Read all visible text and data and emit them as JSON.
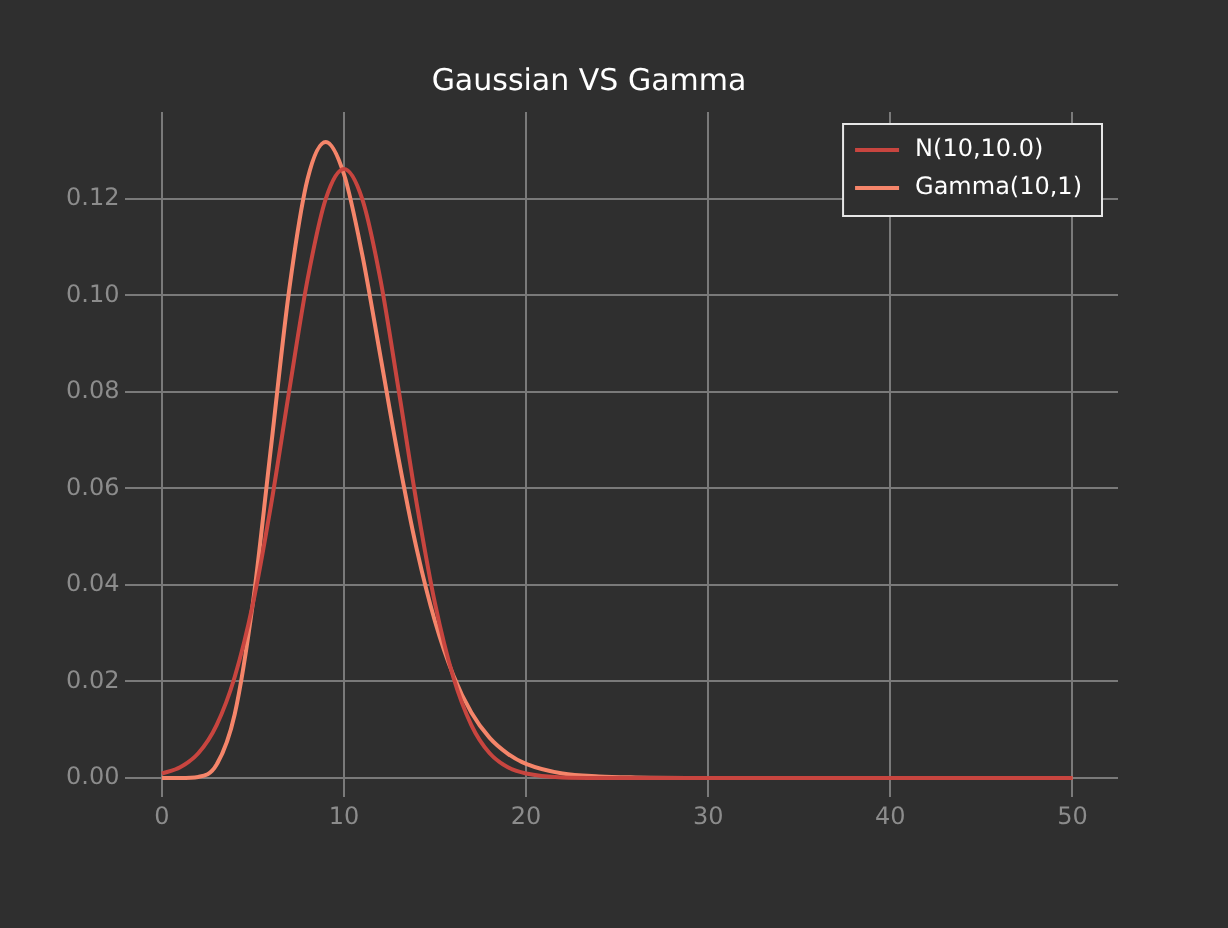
{
  "chart_data": {
    "type": "line",
    "title": "Gaussian VS Gamma",
    "x": [
      0,
      1,
      2,
      3,
      4,
      5,
      6,
      7,
      8,
      9,
      10,
      11,
      12,
      13,
      14,
      15,
      16,
      17,
      18,
      19,
      20,
      22,
      24,
      26,
      30,
      40,
      50
    ],
    "series": [
      {
        "name": "N(10,10.0)",
        "color": "#c8453f",
        "values": [
          0.0009,
          0.0022,
          0.0051,
          0.0109,
          0.0209,
          0.0361,
          0.0567,
          0.0804,
          0.1033,
          0.12,
          0.1262,
          0.12,
          0.1033,
          0.0804,
          0.0567,
          0.0361,
          0.0209,
          0.0109,
          0.0051,
          0.0022,
          0.0009,
          0.0001,
          0,
          0,
          0,
          0,
          0
        ]
      },
      {
        "name": "Gamma(10,1)",
        "color": "#f5856a",
        "values": [
          0,
          0,
          0.0002,
          0.0027,
          0.0132,
          0.0363,
          0.0688,
          0.1014,
          0.1241,
          0.1318,
          0.1251,
          0.1085,
          0.0874,
          0.0661,
          0.0473,
          0.0324,
          0.0213,
          0.0135,
          0.0083,
          0.005,
          0.0029,
          0.0009,
          0.0003,
          0.0001,
          0,
          0,
          0
        ]
      }
    ],
    "xlim": [
      -2,
      52.5
    ],
    "ylim": [
      -0.004,
      0.138
    ],
    "xticks": [
      0,
      10,
      20,
      30,
      40,
      50
    ],
    "yticks": [
      {
        "value": 0,
        "label": "0.00"
      },
      {
        "value": 0.02,
        "label": "0.02"
      },
      {
        "value": 0.04,
        "label": "0.04"
      },
      {
        "value": 0.06,
        "label": "0.06"
      },
      {
        "value": 0.08,
        "label": "0.08"
      },
      {
        "value": 0.1,
        "label": "0.10"
      },
      {
        "value": 0.12,
        "label": "0.12"
      }
    ],
    "grid": true,
    "legend": "top right",
    "marker": "none",
    "line_style": "solid"
  }
}
